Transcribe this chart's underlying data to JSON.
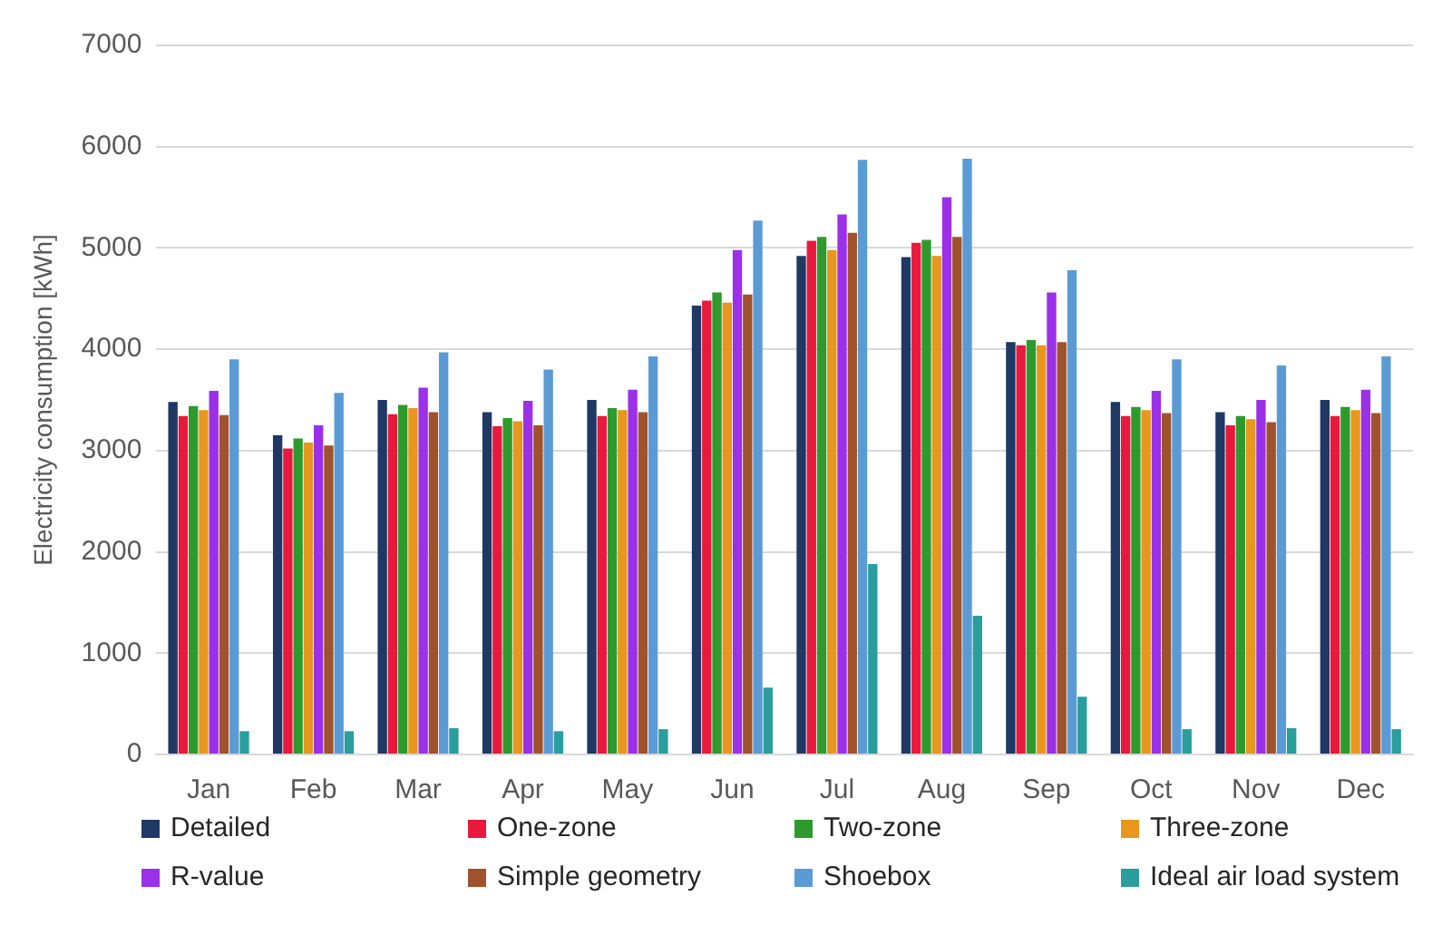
{
  "chart_data": {
    "type": "bar",
    "ylabel": "Electricity consumption [kWh]",
    "categories": [
      "Jan",
      "Feb",
      "Mar",
      "Apr",
      "May",
      "Jun",
      "Jul",
      "Aug",
      "Sep",
      "Oct",
      "Nov",
      "Dec"
    ],
    "series": [
      {
        "name": "Detailed",
        "color": "#1f3864",
        "values": [
          3480,
          3150,
          3500,
          3380,
          3500,
          4430,
          4920,
          4910,
          4070,
          3480,
          3380,
          3500
        ]
      },
      {
        "name": "One-zone",
        "color": "#e8193c",
        "values": [
          3340,
          3020,
          3360,
          3240,
          3340,
          4480,
          5070,
          5050,
          4040,
          3340,
          3250,
          3340
        ]
      },
      {
        "name": "Two-zone",
        "color": "#2e9a2e",
        "values": [
          3440,
          3120,
          3450,
          3320,
          3420,
          4560,
          5110,
          5080,
          4090,
          3430,
          3340,
          3430
        ]
      },
      {
        "name": "Three-zone",
        "color": "#e8961e",
        "values": [
          3400,
          3080,
          3420,
          3290,
          3400,
          4460,
          4980,
          4920,
          4040,
          3400,
          3310,
          3400
        ]
      },
      {
        "name": "R-value",
        "color": "#9b30e8",
        "values": [
          3590,
          3250,
          3620,
          3490,
          3600,
          4980,
          5330,
          5500,
          4560,
          3590,
          3500,
          3600
        ]
      },
      {
        "name": "Simple geometry",
        "color": "#a0522d",
        "values": [
          3350,
          3050,
          3380,
          3250,
          3380,
          4540,
          5150,
          5110,
          4070,
          3370,
          3280,
          3370
        ]
      },
      {
        "name": "Shoebox",
        "color": "#5b9bd5",
        "values": [
          3900,
          3570,
          3970,
          3800,
          3930,
          5270,
          5870,
          5880,
          4780,
          3900,
          3840,
          3930
        ]
      },
      {
        "name": "Ideal air load system",
        "color": "#2a9d9d",
        "values": [
          230,
          230,
          260,
          230,
          250,
          660,
          1880,
          1370,
          570,
          250,
          260,
          250
        ]
      }
    ],
    "ylim": [
      0,
      7000
    ],
    "yticks": [
      0,
      1000,
      2000,
      3000,
      4000,
      5000,
      6000,
      7000
    ],
    "grid": "y",
    "legend": "bottom"
  }
}
